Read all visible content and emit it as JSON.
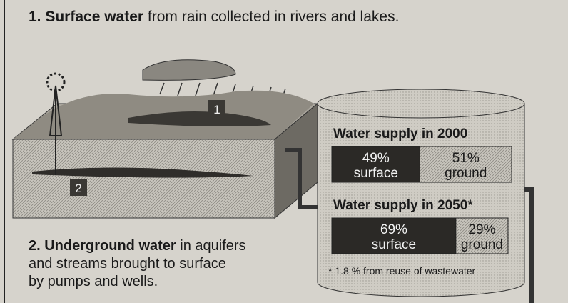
{
  "caption_top": {
    "bold": "1. Surface water",
    "text": " from rain collected in rivers and lakes."
  },
  "caption_bottom": {
    "bold": "2. Underground water",
    "lines": [
      " in aquifers",
      "and streams brought to surface",
      "by pumps and wells."
    ]
  },
  "markers": [
    "1",
    "2"
  ],
  "supply": [
    {
      "title": "Water supply in 2000",
      "segments": [
        {
          "value": 49,
          "label": "49%",
          "name": "surface"
        },
        {
          "value": 51,
          "label": "51%",
          "name": "ground"
        }
      ]
    },
    {
      "title": "Water supply in 2050*",
      "segments": [
        {
          "value": 69,
          "label": "69%",
          "name": "surface"
        },
        {
          "value": 29,
          "label": "29%",
          "name": "ground"
        }
      ]
    }
  ],
  "footnote": "* 1.8 % from reuse of wastewater"
}
